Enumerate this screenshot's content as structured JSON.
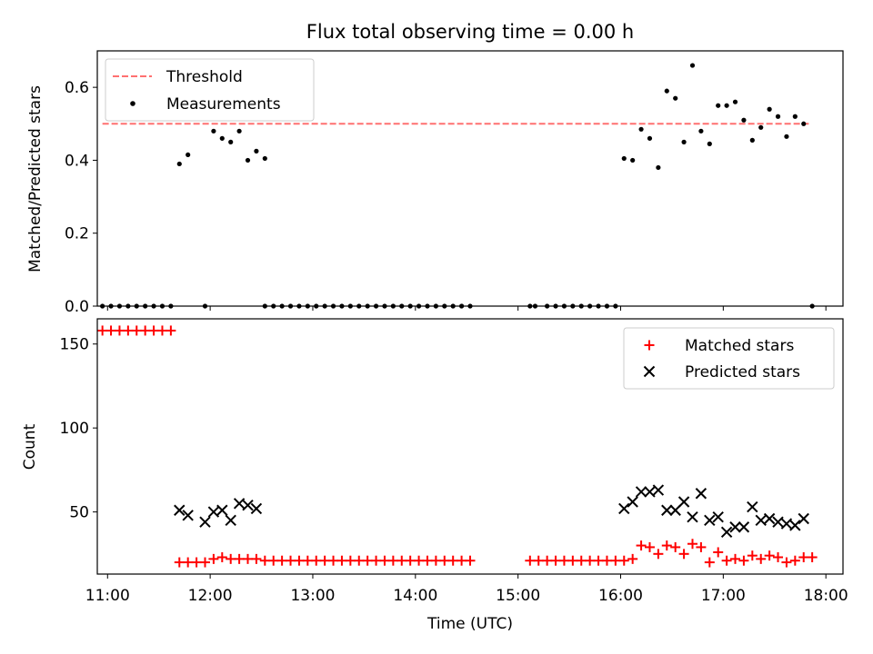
{
  "title": "Flux total observing time = 0.00 h",
  "colors": {
    "threshold": "#ff7070",
    "measurement": "#000000",
    "matched": "#ff0000",
    "predicted": "#000000"
  },
  "chart_data": [
    {
      "type": "scatter",
      "ylabel": "Matched/Predicted stars",
      "xlim": [
        "10:54",
        "18:10"
      ],
      "ylim": [
        0,
        0.7
      ],
      "yticks": [
        0.0,
        0.2,
        0.4,
        0.6
      ],
      "ytick_labels": [
        "0.0",
        "0.2",
        "0.4",
        "0.6"
      ],
      "legend": {
        "position": "top-left",
        "threshold_label": "Threshold",
        "measurements_label": "Measurements"
      },
      "threshold": {
        "value": 0.5,
        "x_start": "10:57",
        "x_end": "17:50"
      },
      "points": [
        [
          "10:57",
          0
        ],
        [
          "11:02",
          0
        ],
        [
          "11:07",
          0
        ],
        [
          "11:12",
          0
        ],
        [
          "11:17",
          0
        ],
        [
          "11:22",
          0
        ],
        [
          "11:27",
          0
        ],
        [
          "11:32",
          0
        ],
        [
          "11:37",
          0
        ],
        [
          "11:42",
          0.39
        ],
        [
          "11:47",
          0.415
        ],
        [
          "11:57",
          0
        ],
        [
          "12:02",
          0.48
        ],
        [
          "12:07",
          0.46
        ],
        [
          "12:12",
          0.45
        ],
        [
          "12:17",
          0.48
        ],
        [
          "12:22",
          0.4
        ],
        [
          "12:27",
          0.425
        ],
        [
          "12:32",
          0.405
        ],
        [
          "12:32",
          0
        ],
        [
          "12:37",
          0
        ],
        [
          "12:42",
          0
        ],
        [
          "12:47",
          0
        ],
        [
          "12:52",
          0
        ],
        [
          "12:57",
          0
        ],
        [
          "13:02",
          0
        ],
        [
          "13:07",
          0
        ],
        [
          "13:12",
          0
        ],
        [
          "13:17",
          0
        ],
        [
          "13:22",
          0
        ],
        [
          "13:27",
          0
        ],
        [
          "13:32",
          0
        ],
        [
          "13:37",
          0
        ],
        [
          "13:42",
          0
        ],
        [
          "13:47",
          0
        ],
        [
          "13:52",
          0
        ],
        [
          "13:57",
          0
        ],
        [
          "14:02",
          0
        ],
        [
          "14:07",
          0
        ],
        [
          "14:12",
          0
        ],
        [
          "14:17",
          0
        ],
        [
          "14:22",
          0
        ],
        [
          "14:27",
          0
        ],
        [
          "14:32",
          0
        ],
        [
          "15:07",
          0
        ],
        [
          "15:10",
          0
        ],
        [
          "15:17",
          0
        ],
        [
          "15:22",
          0
        ],
        [
          "15:27",
          0
        ],
        [
          "15:32",
          0
        ],
        [
          "15:37",
          0
        ],
        [
          "15:42",
          0
        ],
        [
          "15:47",
          0
        ],
        [
          "15:52",
          0
        ],
        [
          "15:57",
          0
        ],
        [
          "16:02",
          0.405
        ],
        [
          "16:07",
          0.4
        ],
        [
          "16:12",
          0.485
        ],
        [
          "16:17",
          0.46
        ],
        [
          "16:22",
          0.38
        ],
        [
          "16:27",
          0.59
        ],
        [
          "16:32",
          0.57
        ],
        [
          "16:37",
          0.45
        ],
        [
          "16:42",
          0.66
        ],
        [
          "16:47",
          0.48
        ],
        [
          "16:52",
          0.445
        ],
        [
          "16:57",
          0.55
        ],
        [
          "17:02",
          0.55
        ],
        [
          "17:07",
          0.56
        ],
        [
          "17:12",
          0.51
        ],
        [
          "17:17",
          0.455
        ],
        [
          "17:22",
          0.49
        ],
        [
          "17:27",
          0.54
        ],
        [
          "17:32",
          0.52
        ],
        [
          "17:37",
          0.465
        ],
        [
          "17:42",
          0.52
        ],
        [
          "17:47",
          0.5
        ],
        [
          "17:52",
          0
        ]
      ]
    },
    {
      "type": "scatter",
      "xlabel": "Time (UTC)",
      "ylabel": "Count",
      "xlim": [
        "10:54",
        "18:10"
      ],
      "ylim": [
        13,
        165
      ],
      "yticks": [
        50,
        100,
        150
      ],
      "ytick_labels": [
        "50",
        "100",
        "150"
      ],
      "xticks": [
        "11:00",
        "12:00",
        "13:00",
        "14:00",
        "15:00",
        "16:00",
        "17:00",
        "18:00"
      ],
      "xtick_labels": [
        "11:00",
        "12:00",
        "13:00",
        "14:00",
        "15:00",
        "16:00",
        "17:00",
        "18:00"
      ],
      "legend": {
        "position": "top-right"
      },
      "series": [
        {
          "name": "Matched stars",
          "marker": "plus",
          "points": [
            [
              "10:57",
              158
            ],
            [
              "11:02",
              158
            ],
            [
              "11:07",
              158
            ],
            [
              "11:12",
              158
            ],
            [
              "11:17",
              158
            ],
            [
              "11:22",
              158
            ],
            [
              "11:27",
              158
            ],
            [
              "11:32",
              158
            ],
            [
              "11:37",
              158
            ],
            [
              "11:42",
              20
            ],
            [
              "11:47",
              20
            ],
            [
              "11:52",
              20
            ],
            [
              "11:57",
              20
            ],
            [
              "12:02",
              22
            ],
            [
              "12:07",
              23
            ],
            [
              "12:12",
              22
            ],
            [
              "12:17",
              22
            ],
            [
              "12:22",
              22
            ],
            [
              "12:27",
              22
            ],
            [
              "12:32",
              21
            ],
            [
              "12:37",
              21
            ],
            [
              "12:42",
              21
            ],
            [
              "12:47",
              21
            ],
            [
              "12:52",
              21
            ],
            [
              "12:57",
              21
            ],
            [
              "13:02",
              21
            ],
            [
              "13:07",
              21
            ],
            [
              "13:12",
              21
            ],
            [
              "13:17",
              21
            ],
            [
              "13:22",
              21
            ],
            [
              "13:27",
              21
            ],
            [
              "13:32",
              21
            ],
            [
              "13:37",
              21
            ],
            [
              "13:42",
              21
            ],
            [
              "13:47",
              21
            ],
            [
              "13:52",
              21
            ],
            [
              "13:57",
              21
            ],
            [
              "14:02",
              21
            ],
            [
              "14:07",
              21
            ],
            [
              "14:12",
              21
            ],
            [
              "14:17",
              21
            ],
            [
              "14:22",
              21
            ],
            [
              "14:27",
              21
            ],
            [
              "14:32",
              21
            ],
            [
              "15:07",
              21
            ],
            [
              "15:12",
              21
            ],
            [
              "15:17",
              21
            ],
            [
              "15:22",
              21
            ],
            [
              "15:27",
              21
            ],
            [
              "15:32",
              21
            ],
            [
              "15:37",
              21
            ],
            [
              "15:42",
              21
            ],
            [
              "15:47",
              21
            ],
            [
              "15:52",
              21
            ],
            [
              "15:57",
              21
            ],
            [
              "16:02",
              21
            ],
            [
              "16:07",
              22
            ],
            [
              "16:12",
              30
            ],
            [
              "16:17",
              29
            ],
            [
              "16:22",
              25
            ],
            [
              "16:27",
              30
            ],
            [
              "16:32",
              29
            ],
            [
              "16:37",
              25
            ],
            [
              "16:42",
              31
            ],
            [
              "16:47",
              29
            ],
            [
              "16:52",
              20
            ],
            [
              "16:57",
              26
            ],
            [
              "17:02",
              21
            ],
            [
              "17:07",
              22
            ],
            [
              "17:12",
              21
            ],
            [
              "17:17",
              24
            ],
            [
              "17:22",
              22
            ],
            [
              "17:27",
              24
            ],
            [
              "17:32",
              23
            ],
            [
              "17:37",
              20
            ],
            [
              "17:42",
              21
            ],
            [
              "17:47",
              23
            ],
            [
              "17:52",
              23
            ]
          ]
        },
        {
          "name": "Predicted stars",
          "marker": "x",
          "points": [
            [
              "11:42",
              51
            ],
            [
              "11:47",
              48
            ],
            [
              "11:57",
              44
            ],
            [
              "12:02",
              50
            ],
            [
              "12:07",
              51
            ],
            [
              "12:12",
              45
            ],
            [
              "12:17",
              55
            ],
            [
              "12:22",
              54
            ],
            [
              "12:27",
              52
            ],
            [
              "16:02",
              52
            ],
            [
              "16:07",
              56
            ],
            [
              "16:12",
              62
            ],
            [
              "16:17",
              62
            ],
            [
              "16:22",
              63
            ],
            [
              "16:27",
              51
            ],
            [
              "16:32",
              51
            ],
            [
              "16:37",
              56
            ],
            [
              "16:42",
              47
            ],
            [
              "16:47",
              61
            ],
            [
              "16:52",
              45
            ],
            [
              "16:57",
              47
            ],
            [
              "17:02",
              38
            ],
            [
              "17:07",
              41
            ],
            [
              "17:12",
              41
            ],
            [
              "17:17",
              53
            ],
            [
              "17:22",
              45
            ],
            [
              "17:27",
              46
            ],
            [
              "17:32",
              44
            ],
            [
              "17:37",
              43
            ],
            [
              "17:42",
              42
            ],
            [
              "17:47",
              46
            ]
          ]
        }
      ]
    }
  ]
}
